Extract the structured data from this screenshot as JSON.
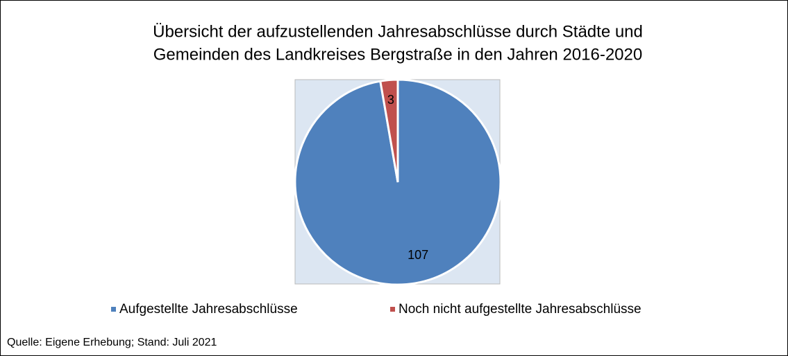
{
  "chart_data": {
    "type": "pie",
    "title": [
      "Übersicht der aufzustellenden Jahresabschlüsse durch Städte und",
      "Gemeinden des Landkreises Bergstraße in den Jahren 2016-2020"
    ],
    "categories": [
      "Aufgestellte Jahresabschlüsse",
      "Noch nicht aufgestellte Jahresabschlüsse"
    ],
    "values": [
      107,
      3
    ],
    "colors": [
      "#4f81bd",
      "#c0504d"
    ],
    "legend": "bottom",
    "source": "Quelle: Eigene Erhebung; Stand: Juli 2021"
  }
}
